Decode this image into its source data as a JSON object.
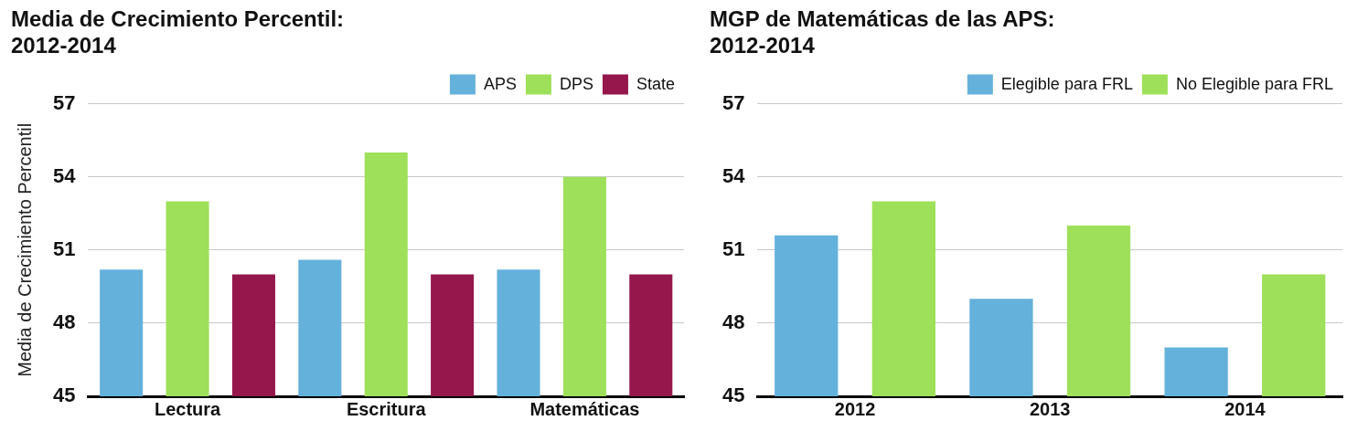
{
  "chart_data": [
    {
      "type": "bar",
      "title": [
        "Media de Crecimiento Percentil:",
        "2012-2014"
      ],
      "ylabel": "Media de Crecimiento Percentil",
      "categories": [
        "Lectura",
        "Escritura",
        "Matemáticas"
      ],
      "series": [
        {
          "name": "APS",
          "color": "#64b1dc",
          "values": [
            50.2,
            50.6,
            50.2
          ]
        },
        {
          "name": "DPS",
          "color": "#9ee05a",
          "values": [
            53,
            55,
            54
          ]
        },
        {
          "name": "State",
          "color": "#95174c",
          "values": [
            50,
            50,
            50
          ]
        }
      ],
      "ylim": [
        45,
        57
      ],
      "yticks": [
        45,
        48,
        51,
        54,
        57
      ],
      "grid": "y",
      "legend": "top right"
    },
    {
      "type": "bar",
      "title": [
        "MGP de Matemáticas de las APS:",
        "2012-2014"
      ],
      "categories": [
        "2012",
        "2013",
        "2014"
      ],
      "series": [
        {
          "name": "Elegible para FRL",
          "color": "#64b1dc",
          "values": [
            51.6,
            49,
            47
          ]
        },
        {
          "name": "No Elegible para FRL",
          "color": "#9ee05a",
          "values": [
            53,
            52,
            50
          ]
        }
      ],
      "ylim": [
        45,
        57
      ],
      "yticks": [
        45,
        48,
        51,
        54,
        57
      ],
      "grid": "y",
      "legend": "top right"
    }
  ]
}
